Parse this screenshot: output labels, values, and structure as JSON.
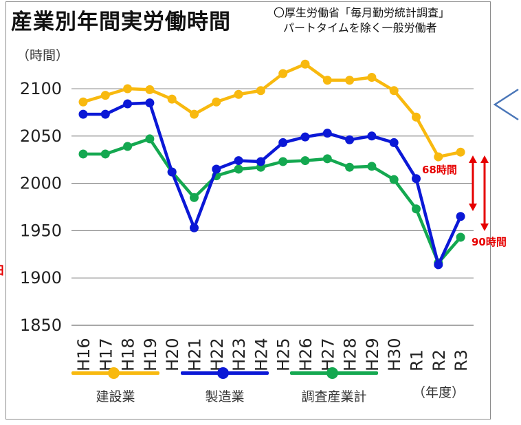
{
  "title": "産業別年間実労働時間",
  "source": {
    "line1": "〇厚生労働省「毎月勤労統計調査」",
    "line2": "パートタイムを除く一般労働者"
  },
  "colors": {
    "construction": "#f8b90f",
    "manufacturing": "#0b18d6",
    "total": "#14a850",
    "gap_arrow": "#e60000",
    "grid": "#8c8c8c",
    "chevron": "#4a76b8"
  },
  "annotations": {
    "gap_manufacturing": "68時間",
    "gap_total": "90時間",
    "edge_glyph": "日"
  },
  "chart_data": {
    "type": "line",
    "categories": [
      "H16",
      "H17",
      "H18",
      "H19",
      "H20",
      "H21",
      "H22",
      "H23",
      "H24",
      "H25",
      "H26",
      "H27",
      "H28",
      "H29",
      "H30",
      "R1",
      "R2",
      "R3"
    ],
    "series": [
      {
        "name": "建設業",
        "color": "#f8b90f",
        "values": [
          2086,
          2093,
          2100,
          2099,
          2089,
          2073,
          2086,
          2094,
          2098,
          2116,
          2126,
          2109,
          2109,
          2112,
          2098,
          2070,
          2028,
          2033
        ]
      },
      {
        "name": "製造業",
        "color": "#0b18d6",
        "values": [
          2073,
          2073,
          2084,
          2085,
          2012,
          1953,
          2015,
          2024,
          2023,
          2043,
          2049,
          2053,
          2046,
          2050,
          2043,
          2005,
          1914,
          1965
        ]
      },
      {
        "name": "調査産業計",
        "color": "#14a850",
        "values": [
          2031,
          2031,
          2039,
          2047,
          2012,
          1985,
          2008,
          2015,
          2017,
          2023,
          2024,
          2026,
          2017,
          2018,
          2004,
          1973,
          1916,
          1943
        ]
      }
    ],
    "title": "産業別年間実労働時間",
    "ylabel": "（時間）",
    "xlabel": "（年度）",
    "ylim": [
      1850,
      2130
    ],
    "yticks": [
      1850,
      1900,
      1950,
      2000,
      2050,
      2100
    ],
    "grid": true,
    "legend_position": "bottom"
  }
}
